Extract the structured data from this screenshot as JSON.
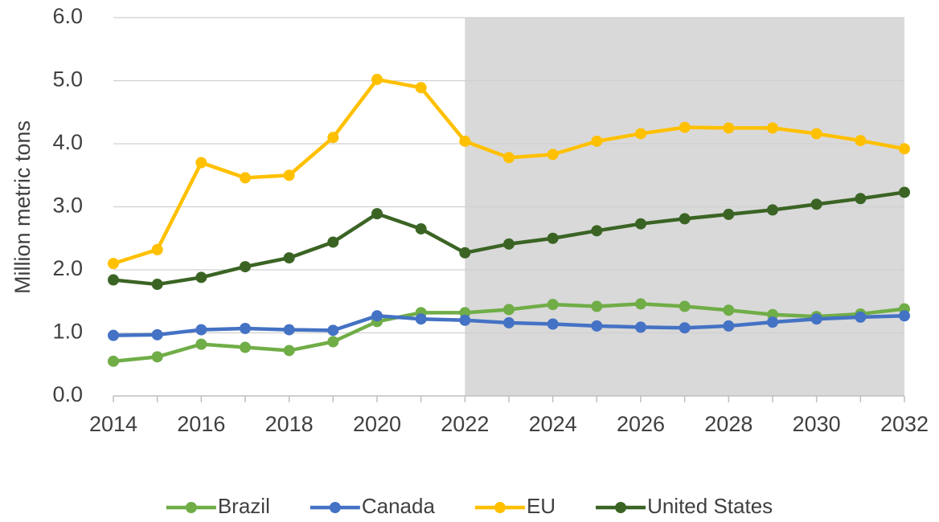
{
  "chart_data": {
    "type": "line",
    "y_label": "Million metric tons",
    "x": [
      2014,
      2015,
      2016,
      2017,
      2018,
      2019,
      2020,
      2021,
      2022,
      2023,
      2024,
      2025,
      2026,
      2027,
      2028,
      2029,
      2030,
      2031,
      2032
    ],
    "xlim": [
      2014,
      2032
    ],
    "xticks": [
      2014,
      2016,
      2018,
      2020,
      2022,
      2024,
      2026,
      2028,
      2030,
      2032
    ],
    "ylim": [
      0,
      6
    ],
    "yticks": [
      {
        "value": 0,
        "label": "0.0"
      },
      {
        "value": 1,
        "label": "1.0"
      },
      {
        "value": 2,
        "label": "2.0"
      },
      {
        "value": 3,
        "label": "3.0"
      },
      {
        "value": 4,
        "label": "4.0"
      },
      {
        "value": 5,
        "label": "5.0"
      },
      {
        "value": 6,
        "label": "6.0"
      }
    ],
    "grid": true,
    "shaded_x": [
      2022,
      2032
    ],
    "shade_color": "#d9d9d9",
    "legend": "bottom",
    "series": [
      {
        "name": "Brazil",
        "color": "#70ad47",
        "values": [
          0.55,
          0.62,
          0.82,
          0.77,
          0.72,
          0.86,
          1.18,
          1.32,
          1.32,
          1.37,
          1.45,
          1.42,
          1.46,
          1.42,
          1.36,
          1.29,
          1.26,
          1.3,
          1.38
        ]
      },
      {
        "name": "Canada",
        "color": "#4472c4",
        "values": [
          0.96,
          0.97,
          1.05,
          1.07,
          1.05,
          1.04,
          1.27,
          1.22,
          1.2,
          1.16,
          1.14,
          1.11,
          1.09,
          1.08,
          1.11,
          1.17,
          1.22,
          1.25,
          1.27
        ]
      },
      {
        "name": "EU",
        "color": "#ffc000",
        "values": [
          2.1,
          2.32,
          3.7,
          3.46,
          3.5,
          4.1,
          5.02,
          4.89,
          4.04,
          3.78,
          3.83,
          4.04,
          4.16,
          4.26,
          4.25,
          4.25,
          4.16,
          4.05,
          3.92
        ]
      },
      {
        "name": "United States",
        "color": "#3b6424",
        "values": [
          1.84,
          1.77,
          1.88,
          2.05,
          2.19,
          2.44,
          2.89,
          2.65,
          2.27,
          2.41,
          2.5,
          2.62,
          2.73,
          2.81,
          2.88,
          2.95,
          3.04,
          3.13,
          3.23
        ]
      }
    ]
  }
}
